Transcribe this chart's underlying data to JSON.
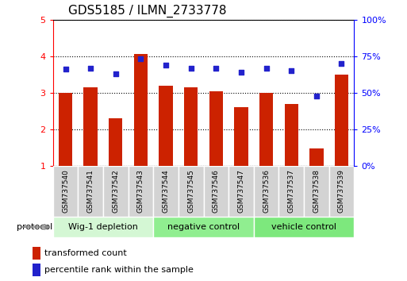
{
  "title": "GDS5185 / ILMN_2733778",
  "samples": [
    "GSM737540",
    "GSM737541",
    "GSM737542",
    "GSM737543",
    "GSM737544",
    "GSM737545",
    "GSM737546",
    "GSM737547",
    "GSM737536",
    "GSM737537",
    "GSM737538",
    "GSM737539"
  ],
  "transformed_count": [
    3.0,
    3.15,
    2.3,
    4.05,
    3.2,
    3.15,
    3.05,
    2.6,
    3.0,
    2.7,
    1.48,
    3.5
  ],
  "percentile_rank": [
    66,
    67,
    63,
    73,
    69,
    67,
    67,
    64,
    67,
    65,
    48,
    70
  ],
  "ylim_left": [
    1,
    5
  ],
  "yticks_left": [
    1,
    2,
    3,
    4,
    5
  ],
  "bar_color": "#cc2200",
  "dot_color": "#2222cc",
  "groups": [
    {
      "label": "Wig-1 depletion",
      "start": 0,
      "end": 4,
      "color": "#d4f7d4"
    },
    {
      "label": "negative control",
      "start": 4,
      "end": 8,
      "color": "#90ee90"
    },
    {
      "label": "vehicle control",
      "start": 8,
      "end": 12,
      "color": "#7de87d"
    }
  ],
  "protocol_label": "protocol",
  "legend_bar_label": "transformed count",
  "legend_dot_label": "percentile rank within the sample",
  "title_fontsize": 11,
  "axis_fontsize": 8,
  "tick_fontsize": 6.5,
  "group_fontsize": 8,
  "legend_fontsize": 8
}
